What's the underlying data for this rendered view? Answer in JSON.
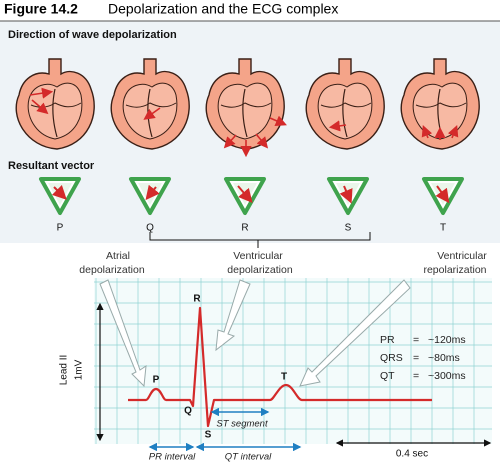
{
  "header": {
    "figure": "Figure 14.2",
    "title": "Depolarization and the ECG complex"
  },
  "sections": {
    "wave": "Direction of wave depolarization",
    "vector": "Resultant vector"
  },
  "vector_labels": [
    "P",
    "Q",
    "R",
    "S",
    "T"
  ],
  "annotations": [
    {
      "lines": [
        "Atrial",
        "depolarization"
      ]
    },
    {
      "lines": [
        "Ventricular",
        "depolarization"
      ]
    },
    {
      "lines": [
        "Ventricular",
        "repolarization"
      ]
    }
  ],
  "ecg": {
    "axis_labels": [
      "Lead II",
      "1mV"
    ],
    "wave_labels": {
      "P": "P",
      "Q": "Q",
      "R": "R",
      "S": "S",
      "T": "T"
    },
    "st_segment": "ST segment",
    "pr_interval": "PR interval",
    "qt_interval": "QT interval",
    "scale": "0.4 sec",
    "table": [
      [
        "PR",
        "=",
        "~120ms"
      ],
      [
        "QRS",
        "=",
        "~80ms"
      ],
      [
        "QT",
        "=",
        "~300ms"
      ]
    ]
  }
}
